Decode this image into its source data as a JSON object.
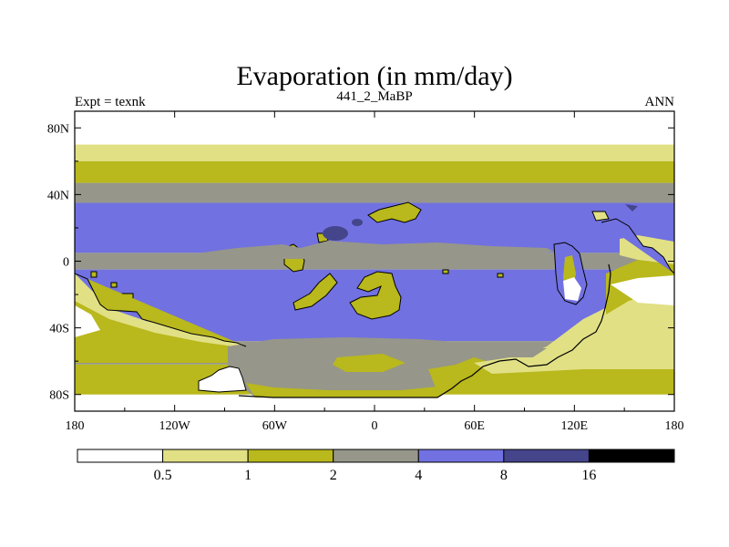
{
  "chart_data": {
    "type": "heatmap",
    "title": "Evaporation (in mm/day)",
    "subtitle_left": "Expt = texnk",
    "subtitle_center": "441_2_MaBP",
    "subtitle_right": "ANN",
    "xlabel": "",
    "ylabel": "",
    "x_ticks": [
      "180",
      "120W",
      "60W",
      "0",
      "60E",
      "120E",
      "180"
    ],
    "x_tick_values": [
      -180,
      -120,
      -60,
      0,
      60,
      120,
      180
    ],
    "y_ticks": [
      "80N",
      "40N",
      "0",
      "40S",
      "80S"
    ],
    "y_tick_values": [
      80,
      40,
      0,
      -40,
      -80
    ],
    "xlim": [
      -180,
      180
    ],
    "ylim": [
      -90,
      90
    ],
    "colorbar": {
      "levels": [
        "0.5",
        "1",
        "2",
        "4",
        "8",
        "16"
      ],
      "colors": [
        "#ffffff",
        "#e1e085",
        "#b9b81c",
        "#96968a",
        "#7171e1",
        "#45458c",
        "#000000"
      ]
    },
    "bands": [
      {
        "lat_top": 70,
        "lat_bottom": 60,
        "color": "#e1e085"
      },
      {
        "lat_top": 60,
        "lat_bottom": 47,
        "color": "#b9b81c"
      },
      {
        "lat_top": 47,
        "lat_bottom": 35,
        "color": "#96968a"
      },
      {
        "lat_top": 35,
        "lat_bottom": 5,
        "color": "#7171e1"
      },
      {
        "lat_top": 5,
        "lat_bottom": -5,
        "color": "#96968a"
      },
      {
        "lat_top": -5,
        "lat_bottom": -48,
        "color": "#7171e1"
      },
      {
        "lat_top": -48,
        "lat_bottom": -62,
        "color": "#96968a"
      },
      {
        "lat_top": -62,
        "lat_bottom": -80,
        "color": "#b9b81c"
      }
    ]
  }
}
